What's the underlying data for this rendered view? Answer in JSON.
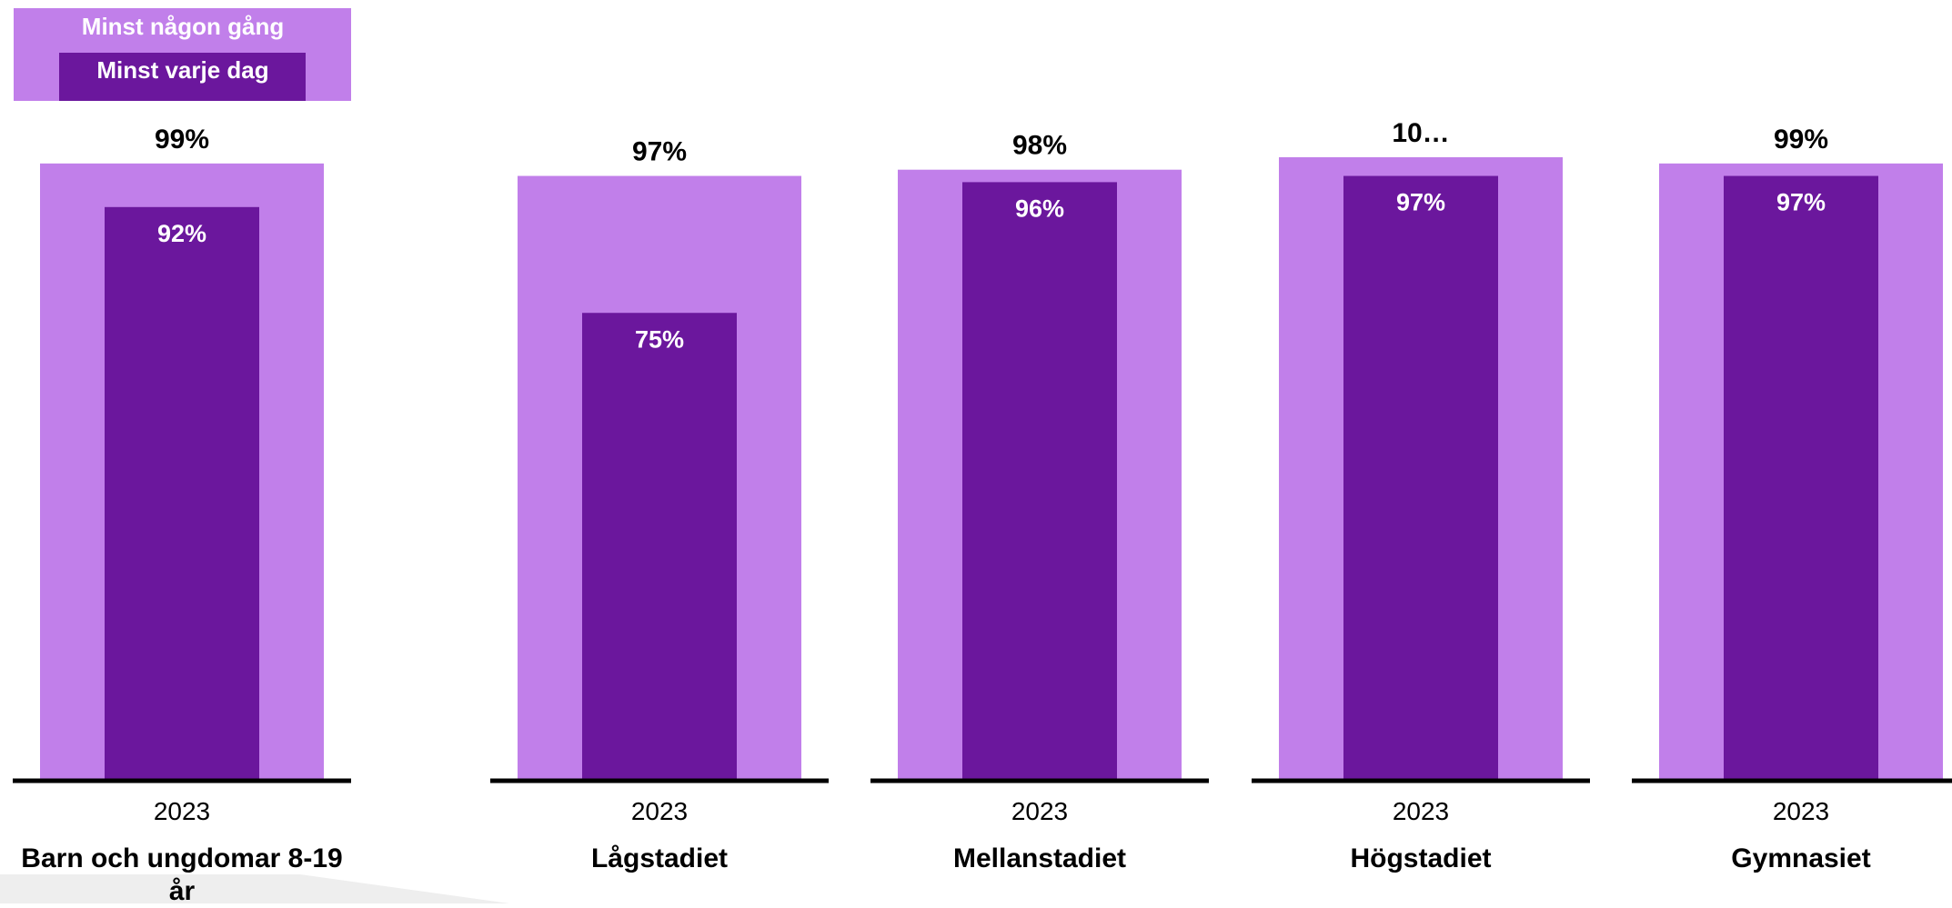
{
  "legend": {
    "outer_label": "Minst någon gång",
    "inner_label": "Minst varje dag"
  },
  "colors": {
    "outer_bar": "#c17fea",
    "inner_bar": "#6b179d",
    "axis": "#000000",
    "background_shape": "#eeeeee"
  },
  "chart_data": {
    "type": "bar",
    "title": "",
    "ylim": [
      0,
      100
    ],
    "grid": false,
    "legend_position": "top-left",
    "categories": [
      "Barn och ungdomar 8-19 år",
      "Lågstadiet",
      "Mellanstadiet",
      "Högstadiet",
      "Gymnasiet"
    ],
    "x": [
      "2023",
      "2023",
      "2023",
      "2023",
      "2023"
    ],
    "series": [
      {
        "name": "Minst någon gång",
        "values": [
          99,
          97,
          98,
          100,
          99
        ],
        "labels": [
          "99%",
          "97%",
          "98%",
          "10…",
          "99%"
        ]
      },
      {
        "name": "Minst varje dag",
        "values": [
          92,
          75,
          96,
          97,
          97
        ],
        "labels": [
          "92%",
          "75%",
          "96%",
          "97%",
          "97%"
        ]
      }
    ]
  }
}
